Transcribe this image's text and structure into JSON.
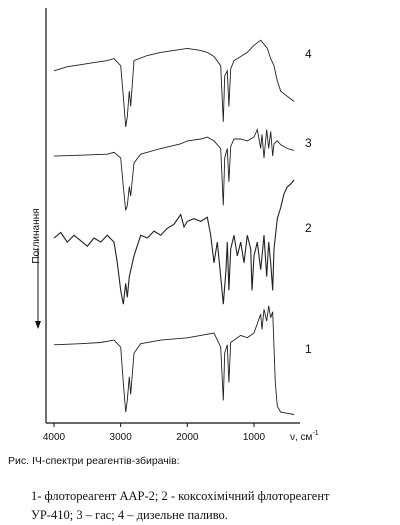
{
  "chart_data": {
    "type": "line",
    "title": "",
    "xlabel": "ν, см",
    "xlabel_superscript": "-1",
    "ylabel": "Поглинання",
    "xlim": [
      4000,
      400
    ],
    "x_reversed": true,
    "x_ticks": [
      4000,
      3000,
      2000,
      1000
    ],
    "x_tick_labels": [
      "4000",
      "3000",
      "2000",
      "1000"
    ],
    "grid": false,
    "legend": "none",
    "series": [
      {
        "name": "1",
        "points": [
          [
            4000,
            0.62
          ],
          [
            3600,
            0.63
          ],
          [
            3300,
            0.64
          ],
          [
            3100,
            0.66
          ],
          [
            3000,
            0.6
          ],
          [
            2960,
            0.3
          ],
          [
            2925,
            0.05
          ],
          [
            2900,
            0.15
          ],
          [
            2870,
            0.35
          ],
          [
            2850,
            0.2
          ],
          [
            2800,
            0.55
          ],
          [
            2700,
            0.63
          ],
          [
            2400,
            0.66
          ],
          [
            2000,
            0.68
          ],
          [
            1800,
            0.7
          ],
          [
            1600,
            0.72
          ],
          [
            1500,
            0.6
          ],
          [
            1460,
            0.15
          ],
          [
            1440,
            0.55
          ],
          [
            1400,
            0.62
          ],
          [
            1376,
            0.3
          ],
          [
            1350,
            0.64
          ],
          [
            1200,
            0.7
          ],
          [
            1100,
            0.68
          ],
          [
            1000,
            0.72
          ],
          [
            950,
            0.8
          ],
          [
            900,
            0.88
          ],
          [
            880,
            0.75
          ],
          [
            850,
            0.92
          ],
          [
            810,
            0.82
          ],
          [
            780,
            0.95
          ],
          [
            750,
            0.85
          ],
          [
            720,
            0.9
          ],
          [
            700,
            0.6
          ],
          [
            680,
            0.3
          ],
          [
            650,
            0.1
          ],
          [
            600,
            0.05
          ],
          [
            500,
            0.04
          ],
          [
            400,
            0.03
          ]
        ]
      },
      {
        "name": "2",
        "points": [
          [
            4000,
            0.58
          ],
          [
            3900,
            0.62
          ],
          [
            3800,
            0.55
          ],
          [
            3700,
            0.6
          ],
          [
            3600,
            0.56
          ],
          [
            3500,
            0.52
          ],
          [
            3400,
            0.58
          ],
          [
            3300,
            0.55
          ],
          [
            3200,
            0.6
          ],
          [
            3100,
            0.55
          ],
          [
            3050,
            0.4
          ],
          [
            3000,
            0.2
          ],
          [
            2960,
            0.1
          ],
          [
            2925,
            0.25
          ],
          [
            2900,
            0.15
          ],
          [
            2870,
            0.3
          ],
          [
            2800,
            0.45
          ],
          [
            2700,
            0.6
          ],
          [
            2600,
            0.58
          ],
          [
            2500,
            0.63
          ],
          [
            2400,
            0.6
          ],
          [
            2300,
            0.65
          ],
          [
            2200,
            0.68
          ],
          [
            2100,
            0.75
          ],
          [
            2050,
            0.66
          ],
          [
            2000,
            0.7
          ],
          [
            1900,
            0.72
          ],
          [
            1800,
            0.7
          ],
          [
            1700,
            0.73
          ],
          [
            1650,
            0.6
          ],
          [
            1600,
            0.4
          ],
          [
            1550,
            0.55
          ],
          [
            1500,
            0.3
          ],
          [
            1460,
            0.1
          ],
          [
            1420,
            0.35
          ],
          [
            1400,
            0.55
          ],
          [
            1376,
            0.2
          ],
          [
            1350,
            0.5
          ],
          [
            1300,
            0.6
          ],
          [
            1250,
            0.45
          ],
          [
            1200,
            0.55
          ],
          [
            1150,
            0.4
          ],
          [
            1100,
            0.6
          ],
          [
            1050,
            0.5
          ],
          [
            1030,
            0.2
          ],
          [
            1000,
            0.45
          ],
          [
            950,
            0.55
          ],
          [
            900,
            0.35
          ],
          [
            870,
            0.5
          ],
          [
            850,
            0.6
          ],
          [
            810,
            0.3
          ],
          [
            780,
            0.55
          ],
          [
            750,
            0.4
          ],
          [
            720,
            0.2
          ],
          [
            700,
            0.5
          ],
          [
            650,
            0.72
          ],
          [
            600,
            0.8
          ],
          [
            550,
            0.9
          ],
          [
            500,
            0.95
          ],
          [
            450,
            0.97
          ],
          [
            400,
            1.0
          ]
        ]
      },
      {
        "name": "3",
        "points": [
          [
            4000,
            0.62
          ],
          [
            3600,
            0.63
          ],
          [
            3200,
            0.64
          ],
          [
            3100,
            0.66
          ],
          [
            3000,
            0.6
          ],
          [
            2960,
            0.3
          ],
          [
            2925,
            0.05
          ],
          [
            2900,
            0.1
          ],
          [
            2870,
            0.3
          ],
          [
            2850,
            0.2
          ],
          [
            2800,
            0.55
          ],
          [
            2700,
            0.64
          ],
          [
            2400,
            0.7
          ],
          [
            2100,
            0.75
          ],
          [
            2000,
            0.78
          ],
          [
            1800,
            0.8
          ],
          [
            1700,
            0.82
          ],
          [
            1600,
            0.78
          ],
          [
            1500,
            0.7
          ],
          [
            1460,
            0.1
          ],
          [
            1440,
            0.6
          ],
          [
            1400,
            0.7
          ],
          [
            1376,
            0.35
          ],
          [
            1350,
            0.72
          ],
          [
            1300,
            0.8
          ],
          [
            1200,
            0.8
          ],
          [
            1100,
            0.78
          ],
          [
            1000,
            0.82
          ],
          [
            950,
            0.9
          ],
          [
            900,
            0.7
          ],
          [
            880,
            0.85
          ],
          [
            850,
            0.6
          ],
          [
            810,
            0.9
          ],
          [
            780,
            0.7
          ],
          [
            750,
            0.88
          ],
          [
            720,
            0.62
          ],
          [
            700,
            0.75
          ],
          [
            650,
            0.78
          ],
          [
            600,
            0.74
          ],
          [
            500,
            0.7
          ],
          [
            400,
            0.68
          ]
        ]
      },
      {
        "name": "4",
        "points": [
          [
            4000,
            0.6
          ],
          [
            3800,
            0.64
          ],
          [
            3600,
            0.66
          ],
          [
            3400,
            0.68
          ],
          [
            3200,
            0.7
          ],
          [
            3100,
            0.72
          ],
          [
            3000,
            0.65
          ],
          [
            2960,
            0.35
          ],
          [
            2925,
            0.05
          ],
          [
            2900,
            0.15
          ],
          [
            2870,
            0.4
          ],
          [
            2850,
            0.25
          ],
          [
            2800,
            0.7
          ],
          [
            2600,
            0.75
          ],
          [
            2400,
            0.78
          ],
          [
            2200,
            0.8
          ],
          [
            2000,
            0.82
          ],
          [
            1900,
            0.81
          ],
          [
            1800,
            0.8
          ],
          [
            1700,
            0.78
          ],
          [
            1600,
            0.74
          ],
          [
            1500,
            0.65
          ],
          [
            1460,
            0.1
          ],
          [
            1440,
            0.55
          ],
          [
            1400,
            0.6
          ],
          [
            1376,
            0.25
          ],
          [
            1350,
            0.62
          ],
          [
            1300,
            0.7
          ],
          [
            1200,
            0.74
          ],
          [
            1100,
            0.78
          ],
          [
            1000,
            0.85
          ],
          [
            900,
            0.9
          ],
          [
            800,
            0.82
          ],
          [
            750,
            0.72
          ],
          [
            700,
            0.65
          ],
          [
            650,
            0.5
          ],
          [
            600,
            0.4
          ],
          [
            500,
            0.35
          ],
          [
            400,
            0.3
          ]
        ]
      }
    ],
    "curve_labels": [
      "1",
      "2",
      "3",
      "4"
    ]
  },
  "caption": {
    "title": "Рис.  ІЧ-спектри реагентів-збирачів:",
    "line1": "1-   флотореагент ААР-2; 2 - коксохімічний флотореагент",
    "line2": "УР-410; 3 – гас; 4 – дизельне паливо."
  }
}
